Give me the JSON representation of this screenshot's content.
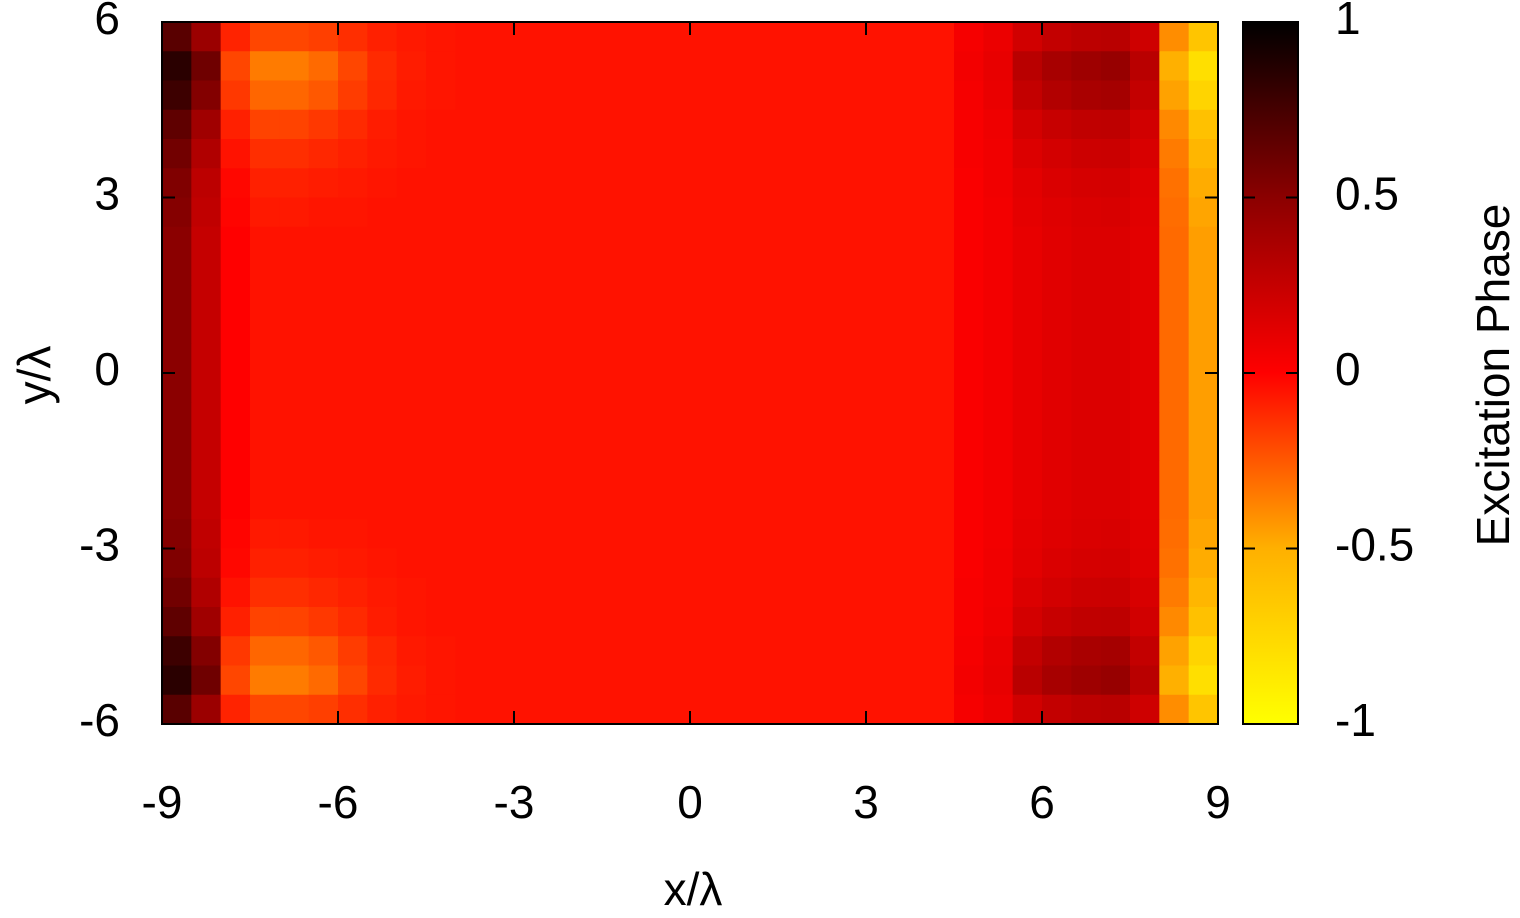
{
  "chart_data": {
    "type": "heatmap",
    "x_label": "x/λ",
    "y_label": "y/λ",
    "colorbar_label": "Excitation Phase",
    "xlim": [
      -9,
      9
    ],
    "ylim": [
      -6,
      6
    ],
    "xticks": [
      -9,
      -6,
      -3,
      0,
      3,
      6,
      9
    ],
    "yticks": [
      -6,
      -3,
      0,
      3,
      6
    ],
    "clim": [
      -1,
      1
    ],
    "cticks": [
      -1,
      -0.5,
      0,
      0.5,
      1
    ],
    "colormap": [
      {
        "value": -1,
        "color": "#ffff00"
      },
      {
        "value": -0.5,
        "color": "#ffb000"
      },
      {
        "value": 0,
        "color": "#ff0000"
      },
      {
        "value": 0.5,
        "color": "#8b0000"
      },
      {
        "value": 1,
        "color": "#000000"
      }
    ],
    "x": [
      -8.75,
      -8.25,
      -7.75,
      -7.25,
      -6.75,
      -6.25,
      -5.75,
      -5.25,
      -4.75,
      -4.25,
      -3.75,
      -3.25,
      -2.75,
      -2.25,
      -1.75,
      -1.25,
      -0.75,
      -0.25,
      0.25,
      0.75,
      1.25,
      1.75,
      2.25,
      2.75,
      3.25,
      3.75,
      4.25,
      4.75,
      5.25,
      5.75,
      6.25,
      6.75,
      7.25,
      7.75,
      8.25,
      8.75
    ],
    "y": [
      5.75,
      5.25,
      4.75,
      4.25,
      3.75,
      3.25,
      2.75,
      2.25,
      1.75,
      1.25,
      0.75,
      0.25,
      -0.25,
      -0.75,
      -1.25,
      -1.75,
      -2.25,
      -2.75,
      -3.25,
      -3.75,
      -4.25,
      -4.75,
      -5.25,
      -5.75
    ],
    "z": [
      [
        0.68,
        0.43,
        -0.1,
        -0.2,
        -0.2,
        -0.18,
        -0.13,
        -0.09,
        -0.07,
        -0.06,
        -0.05,
        -0.05,
        -0.05,
        -0.05,
        -0.05,
        -0.05,
        -0.05,
        -0.05,
        -0.05,
        -0.05,
        -0.05,
        -0.05,
        -0.05,
        -0.05,
        -0.05,
        -0.05,
        -0.05,
        0.04,
        0.08,
        0.2,
        0.26,
        0.29,
        0.3,
        0.21,
        -0.4,
        -0.63
      ],
      [
        0.85,
        0.6,
        -0.2,
        -0.35,
        -0.35,
        -0.3,
        -0.2,
        -0.12,
        -0.08,
        -0.06,
        -0.05,
        -0.05,
        -0.05,
        -0.05,
        -0.05,
        -0.05,
        -0.05,
        -0.05,
        -0.05,
        -0.05,
        -0.05,
        -0.05,
        -0.05,
        -0.05,
        -0.05,
        -0.05,
        -0.05,
        0.05,
        0.1,
        0.3,
        0.38,
        0.42,
        0.45,
        0.3,
        -0.5,
        -0.8
      ],
      [
        0.78,
        0.53,
        -0.16,
        -0.29,
        -0.29,
        -0.25,
        -0.17,
        -0.11,
        -0.07,
        -0.06,
        -0.05,
        -0.05,
        -0.05,
        -0.05,
        -0.05,
        -0.05,
        -0.05,
        -0.05,
        -0.05,
        -0.05,
        -0.05,
        -0.05,
        -0.05,
        -0.05,
        -0.05,
        -0.05,
        -0.05,
        0.04,
        0.09,
        0.26,
        0.33,
        0.37,
        0.39,
        0.26,
        -0.46,
        -0.73
      ],
      [
        0.66,
        0.41,
        -0.09,
        -0.19,
        -0.19,
        -0.16,
        -0.12,
        -0.08,
        -0.06,
        -0.05,
        -0.05,
        -0.05,
        -0.05,
        -0.05,
        -0.05,
        -0.05,
        -0.05,
        -0.05,
        -0.05,
        -0.05,
        -0.05,
        -0.05,
        -0.05,
        -0.05,
        -0.05,
        -0.05,
        -0.05,
        0.03,
        0.07,
        0.19,
        0.24,
        0.27,
        0.28,
        0.2,
        -0.39,
        -0.61
      ],
      [
        0.59,
        0.34,
        -0.05,
        -0.13,
        -0.13,
        -0.11,
        -0.09,
        -0.07,
        -0.06,
        -0.05,
        -0.05,
        -0.05,
        -0.05,
        -0.05,
        -0.05,
        -0.05,
        -0.05,
        -0.05,
        -0.05,
        -0.05,
        -0.05,
        -0.05,
        -0.05,
        -0.05,
        -0.05,
        -0.05,
        -0.05,
        0.03,
        0.06,
        0.15,
        0.19,
        0.22,
        0.23,
        0.17,
        -0.35,
        -0.54
      ],
      [
        0.54,
        0.29,
        -0.02,
        -0.09,
        -0.09,
        -0.08,
        -0.07,
        -0.06,
        -0.05,
        -0.05,
        -0.05,
        -0.05,
        -0.05,
        -0.05,
        -0.05,
        -0.05,
        -0.05,
        -0.05,
        -0.05,
        -0.05,
        -0.05,
        -0.05,
        -0.05,
        -0.05,
        -0.05,
        -0.05,
        -0.05,
        0.02,
        0.06,
        0.12,
        0.16,
        0.18,
        0.19,
        0.14,
        -0.32,
        -0.49
      ],
      [
        0.52,
        0.27,
        -0.01,
        -0.07,
        -0.07,
        -0.06,
        -0.06,
        -0.05,
        -0.05,
        -0.05,
        -0.05,
        -0.05,
        -0.05,
        -0.05,
        -0.05,
        -0.05,
        -0.05,
        -0.05,
        -0.05,
        -0.05,
        -0.05,
        -0.05,
        -0.05,
        -0.05,
        -0.05,
        -0.05,
        -0.05,
        0.02,
        0.05,
        0.11,
        0.14,
        0.16,
        0.17,
        0.13,
        -0.31,
        -0.47
      ],
      [
        0.5,
        0.25,
        0,
        -0.05,
        -0.05,
        -0.05,
        -0.05,
        -0.05,
        -0.05,
        -0.05,
        -0.05,
        -0.05,
        -0.05,
        -0.05,
        -0.05,
        -0.05,
        -0.05,
        -0.05,
        -0.05,
        -0.05,
        -0.05,
        -0.05,
        -0.05,
        -0.05,
        -0.05,
        -0.05,
        -0.05,
        0.02,
        0.05,
        0.1,
        0.13,
        0.15,
        0.15,
        0.12,
        -0.3,
        -0.45
      ],
      [
        0.5,
        0.25,
        0,
        -0.05,
        -0.05,
        -0.05,
        -0.05,
        -0.05,
        -0.05,
        -0.05,
        -0.05,
        -0.05,
        -0.05,
        -0.05,
        -0.05,
        -0.05,
        -0.05,
        -0.05,
        -0.05,
        -0.05,
        -0.05,
        -0.05,
        -0.05,
        -0.05,
        -0.05,
        -0.05,
        -0.05,
        0.02,
        0.05,
        0.1,
        0.13,
        0.15,
        0.15,
        0.12,
        -0.3,
        -0.45
      ],
      [
        0.5,
        0.25,
        0,
        -0.05,
        -0.05,
        -0.05,
        -0.05,
        -0.05,
        -0.05,
        -0.05,
        -0.05,
        -0.05,
        -0.05,
        -0.05,
        -0.05,
        -0.05,
        -0.05,
        -0.05,
        -0.05,
        -0.05,
        -0.05,
        -0.05,
        -0.05,
        -0.05,
        -0.05,
        -0.05,
        -0.05,
        0.02,
        0.05,
        0.1,
        0.13,
        0.15,
        0.15,
        0.12,
        -0.3,
        -0.45
      ],
      [
        0.5,
        0.25,
        0,
        -0.05,
        -0.05,
        -0.05,
        -0.05,
        -0.05,
        -0.05,
        -0.05,
        -0.05,
        -0.05,
        -0.05,
        -0.05,
        -0.05,
        -0.05,
        -0.05,
        -0.05,
        -0.05,
        -0.05,
        -0.05,
        -0.05,
        -0.05,
        -0.05,
        -0.05,
        -0.05,
        -0.05,
        0.02,
        0.05,
        0.1,
        0.13,
        0.15,
        0.15,
        0.12,
        -0.3,
        -0.45
      ],
      [
        0.5,
        0.25,
        0,
        -0.05,
        -0.05,
        -0.05,
        -0.05,
        -0.05,
        -0.05,
        -0.05,
        -0.05,
        -0.05,
        -0.05,
        -0.05,
        -0.05,
        -0.05,
        -0.05,
        -0.05,
        -0.05,
        -0.05,
        -0.05,
        -0.05,
        -0.05,
        -0.05,
        -0.05,
        -0.05,
        -0.05,
        0.02,
        0.05,
        0.1,
        0.13,
        0.15,
        0.15,
        0.12,
        -0.3,
        -0.45
      ],
      [
        0.5,
        0.25,
        0,
        -0.05,
        -0.05,
        -0.05,
        -0.05,
        -0.05,
        -0.05,
        -0.05,
        -0.05,
        -0.05,
        -0.05,
        -0.05,
        -0.05,
        -0.05,
        -0.05,
        -0.05,
        -0.05,
        -0.05,
        -0.05,
        -0.05,
        -0.05,
        -0.05,
        -0.05,
        -0.05,
        -0.05,
        0.02,
        0.05,
        0.1,
        0.13,
        0.15,
        0.15,
        0.12,
        -0.3,
        -0.45
      ],
      [
        0.5,
        0.25,
        0,
        -0.05,
        -0.05,
        -0.05,
        -0.05,
        -0.05,
        -0.05,
        -0.05,
        -0.05,
        -0.05,
        -0.05,
        -0.05,
        -0.05,
        -0.05,
        -0.05,
        -0.05,
        -0.05,
        -0.05,
        -0.05,
        -0.05,
        -0.05,
        -0.05,
        -0.05,
        -0.05,
        -0.05,
        0.02,
        0.05,
        0.1,
        0.13,
        0.15,
        0.15,
        0.12,
        -0.3,
        -0.45
      ],
      [
        0.5,
        0.25,
        0,
        -0.05,
        -0.05,
        -0.05,
        -0.05,
        -0.05,
        -0.05,
        -0.05,
        -0.05,
        -0.05,
        -0.05,
        -0.05,
        -0.05,
        -0.05,
        -0.05,
        -0.05,
        -0.05,
        -0.05,
        -0.05,
        -0.05,
        -0.05,
        -0.05,
        -0.05,
        -0.05,
        -0.05,
        0.02,
        0.05,
        0.1,
        0.13,
        0.15,
        0.15,
        0.12,
        -0.3,
        -0.45
      ],
      [
        0.5,
        0.25,
        0,
        -0.05,
        -0.05,
        -0.05,
        -0.05,
        -0.05,
        -0.05,
        -0.05,
        -0.05,
        -0.05,
        -0.05,
        -0.05,
        -0.05,
        -0.05,
        -0.05,
        -0.05,
        -0.05,
        -0.05,
        -0.05,
        -0.05,
        -0.05,
        -0.05,
        -0.05,
        -0.05,
        -0.05,
        0.02,
        0.05,
        0.1,
        0.13,
        0.15,
        0.15,
        0.12,
        -0.3,
        -0.45
      ],
      [
        0.5,
        0.25,
        0,
        -0.05,
        -0.05,
        -0.05,
        -0.05,
        -0.05,
        -0.05,
        -0.05,
        -0.05,
        -0.05,
        -0.05,
        -0.05,
        -0.05,
        -0.05,
        -0.05,
        -0.05,
        -0.05,
        -0.05,
        -0.05,
        -0.05,
        -0.05,
        -0.05,
        -0.05,
        -0.05,
        -0.05,
        0.02,
        0.05,
        0.1,
        0.13,
        0.15,
        0.15,
        0.12,
        -0.3,
        -0.45
      ],
      [
        0.52,
        0.27,
        -0.01,
        -0.07,
        -0.07,
        -0.06,
        -0.06,
        -0.05,
        -0.05,
        -0.05,
        -0.05,
        -0.05,
        -0.05,
        -0.05,
        -0.05,
        -0.05,
        -0.05,
        -0.05,
        -0.05,
        -0.05,
        -0.05,
        -0.05,
        -0.05,
        -0.05,
        -0.05,
        -0.05,
        -0.05,
        0.02,
        0.05,
        0.11,
        0.14,
        0.16,
        0.17,
        0.13,
        -0.31,
        -0.47
      ],
      [
        0.54,
        0.29,
        -0.02,
        -0.09,
        -0.09,
        -0.08,
        -0.07,
        -0.06,
        -0.05,
        -0.05,
        -0.05,
        -0.05,
        -0.05,
        -0.05,
        -0.05,
        -0.05,
        -0.05,
        -0.05,
        -0.05,
        -0.05,
        -0.05,
        -0.05,
        -0.05,
        -0.05,
        -0.05,
        -0.05,
        -0.05,
        0.02,
        0.06,
        0.12,
        0.16,
        0.18,
        0.19,
        0.14,
        -0.32,
        -0.49
      ],
      [
        0.59,
        0.34,
        -0.05,
        -0.13,
        -0.13,
        -0.11,
        -0.09,
        -0.07,
        -0.06,
        -0.05,
        -0.05,
        -0.05,
        -0.05,
        -0.05,
        -0.05,
        -0.05,
        -0.05,
        -0.05,
        -0.05,
        -0.05,
        -0.05,
        -0.05,
        -0.05,
        -0.05,
        -0.05,
        -0.05,
        -0.05,
        0.03,
        0.06,
        0.15,
        0.19,
        0.22,
        0.23,
        0.17,
        -0.35,
        -0.54
      ],
      [
        0.66,
        0.41,
        -0.09,
        -0.19,
        -0.19,
        -0.16,
        -0.12,
        -0.08,
        -0.06,
        -0.05,
        -0.05,
        -0.05,
        -0.05,
        -0.05,
        -0.05,
        -0.05,
        -0.05,
        -0.05,
        -0.05,
        -0.05,
        -0.05,
        -0.05,
        -0.05,
        -0.05,
        -0.05,
        -0.05,
        -0.05,
        0.03,
        0.07,
        0.19,
        0.24,
        0.27,
        0.28,
        0.2,
        -0.39,
        -0.61
      ],
      [
        0.78,
        0.53,
        -0.16,
        -0.29,
        -0.29,
        -0.25,
        -0.17,
        -0.11,
        -0.07,
        -0.06,
        -0.05,
        -0.05,
        -0.05,
        -0.05,
        -0.05,
        -0.05,
        -0.05,
        -0.05,
        -0.05,
        -0.05,
        -0.05,
        -0.05,
        -0.05,
        -0.05,
        -0.05,
        -0.05,
        -0.05,
        0.04,
        0.09,
        0.26,
        0.33,
        0.37,
        0.39,
        0.26,
        -0.46,
        -0.73
      ],
      [
        0.85,
        0.6,
        -0.2,
        -0.35,
        -0.35,
        -0.3,
        -0.2,
        -0.12,
        -0.08,
        -0.06,
        -0.05,
        -0.05,
        -0.05,
        -0.05,
        -0.05,
        -0.05,
        -0.05,
        -0.05,
        -0.05,
        -0.05,
        -0.05,
        -0.05,
        -0.05,
        -0.05,
        -0.05,
        -0.05,
        -0.05,
        0.05,
        0.1,
        0.3,
        0.38,
        0.42,
        0.45,
        0.3,
        -0.5,
        -0.8
      ],
      [
        0.68,
        0.43,
        -0.1,
        -0.2,
        -0.2,
        -0.18,
        -0.13,
        -0.09,
        -0.07,
        -0.06,
        -0.05,
        -0.05,
        -0.05,
        -0.05,
        -0.05,
        -0.05,
        -0.05,
        -0.05,
        -0.05,
        -0.05,
        -0.05,
        -0.05,
        -0.05,
        -0.05,
        -0.05,
        -0.05,
        -0.05,
        0.04,
        0.08,
        0.2,
        0.26,
        0.29,
        0.3,
        0.21,
        -0.4,
        -0.63
      ]
    ]
  }
}
